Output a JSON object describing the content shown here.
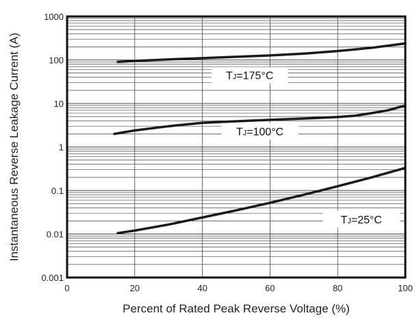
{
  "chart_data": {
    "type": "line",
    "title": "",
    "xlabel": "Percent of Rated Peak Reverse Voltage (%)",
    "ylabel": "Instantaneous Reverse Leakage Current (A)",
    "xlim": [
      0,
      100
    ],
    "ylim": [
      0.001,
      1000
    ],
    "yscale": "log",
    "grid": true,
    "x_ticks": [
      "0",
      "20",
      "40",
      "60",
      "80",
      "100"
    ],
    "y_ticks": [
      "0.001",
      "0.01",
      "0.1",
      "1",
      "10",
      "100",
      "1000"
    ],
    "line_color": "#1a1a1a",
    "series": [
      {
        "name": "TJ=175°C",
        "x": [
          15,
          20,
          30,
          40,
          50,
          60,
          70,
          80,
          90,
          100
        ],
        "y": [
          90,
          95,
          103,
          110,
          118,
          127,
          140,
          160,
          190,
          240
        ]
      },
      {
        "name": "TJ=100°C",
        "x": [
          14,
          20,
          30,
          40,
          50,
          60,
          70,
          80,
          85,
          90,
          95,
          100
        ],
        "y": [
          2.0,
          2.4,
          3.0,
          3.6,
          3.9,
          4.2,
          4.5,
          4.9,
          5.2,
          6.0,
          7.0,
          9.0
        ]
      },
      {
        "name": "TJ=25°C",
        "x": [
          15,
          20,
          30,
          40,
          50,
          60,
          70,
          80,
          90,
          100
        ],
        "y": [
          0.0105,
          0.012,
          0.0165,
          0.024,
          0.035,
          0.052,
          0.08,
          0.125,
          0.2,
          0.33
        ]
      }
    ]
  }
}
